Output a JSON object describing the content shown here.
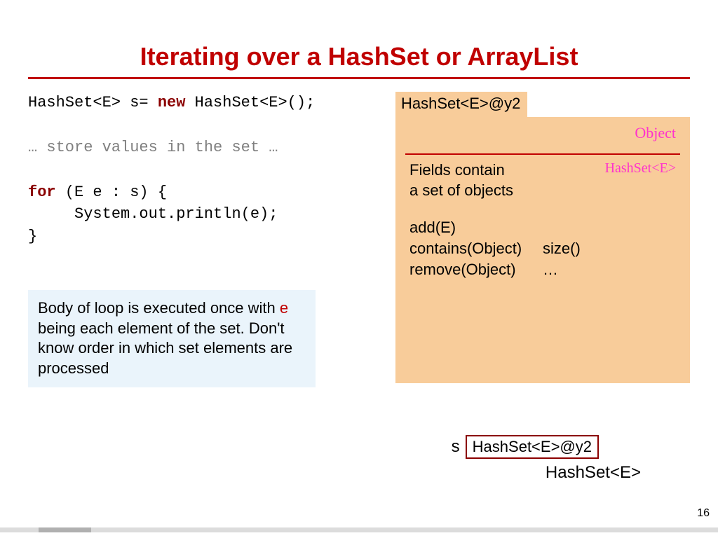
{
  "slide": {
    "title": "Iterating over a HashSet or ArrayList",
    "page_number": "16"
  },
  "code": {
    "line1_a": "HashSet<E> s= ",
    "line1_new": "new",
    "line1_b": " HashSet<E>();",
    "line2": "… store values in the set …",
    "line3_for": "for",
    "line3_rest": " (E e : s) {",
    "line4": "     System.out.println(e);",
    "line5": "}"
  },
  "note": {
    "part1": "Body of loop is executed once with ",
    "e_var": "e",
    "part2": " being each element of the set. Don't know order in which set elements are processed"
  },
  "diagram": {
    "tab_label": "HashSet<E>@y2",
    "object_label": "Object",
    "hashset_label": "HashSet<E>",
    "fields_line1": "Fields contain",
    "fields_line2": "a set of objects",
    "methods": {
      "m1": "add(E)",
      "m2_left": "contains(Object)",
      "m2_right": "size()",
      "m3_left": "remove(Object)",
      "m3_right": "…"
    },
    "var_name": "s",
    "var_value": "HashSet<E>@y2",
    "type_label": "HashSet<E>"
  },
  "colors": {
    "title": "#c00000",
    "keyword": "#8b0000",
    "gray": "#808080",
    "peach": "#f8cc9a",
    "note_bg": "#eaf4fb",
    "pink": "#ff33cc"
  }
}
